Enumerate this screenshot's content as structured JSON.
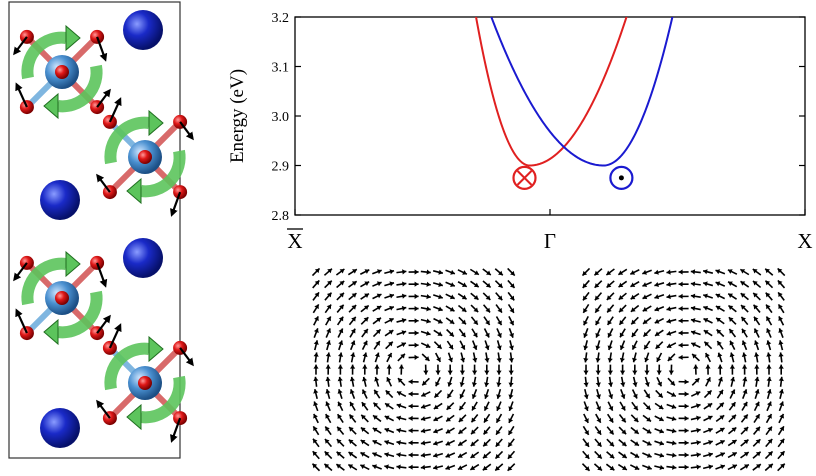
{
  "chart_data": {
    "type": "line",
    "ylabel": "Energy (eV)",
    "ylim": [
      2.8,
      3.2
    ],
    "yticks": [
      "2.8",
      "2.9",
      "3.0",
      "3.1",
      "3.2"
    ],
    "xlim": [
      -1,
      1
    ],
    "xticks": [
      {
        "pos": -1,
        "label": "X",
        "overline": true
      },
      {
        "pos": 0,
        "label": "Γ",
        "overline": false
      },
      {
        "pos": 1,
        "label": "X",
        "overline": false
      }
    ],
    "series": [
      {
        "color": "#e02020",
        "min_k": -0.08,
        "min_e": 2.9,
        "k_at_3_2": [
          -0.29,
          0.3
        ]
      },
      {
        "color": "#1a1ad0",
        "min_k": 0.21,
        "min_e": 2.9,
        "k_at_3_2": [
          -0.23,
          0.48
        ]
      }
    ],
    "spin_markers": [
      {
        "symbol": "⊗",
        "color": "#e02020",
        "k": -0.1,
        "e": 2.875
      },
      {
        "symbol": "⊙",
        "color": "#1a1ad0",
        "k": 0.28,
        "e": 2.875
      }
    ]
  },
  "crystal": {
    "octahedra": [
      {
        "cx": 62,
        "cy": 72,
        "tilt": -1
      },
      {
        "cx": 145,
        "cy": 157,
        "tilt": 1
      },
      {
        "cx": 62,
        "cy": 298,
        "tilt": -1
      },
      {
        "cx": 145,
        "cy": 383,
        "tilt": 1
      }
    ],
    "a_site_atoms": [
      {
        "cx": 143,
        "cy": 30
      },
      {
        "cx": 60,
        "cy": 200
      },
      {
        "cx": 143,
        "cy": 258
      },
      {
        "cx": 60,
        "cy": 428
      }
    ],
    "colors": {
      "oxygen": "#e01818",
      "b_site": "#4a90d0",
      "a_site": "#1a2ac8",
      "rotation": "#5cc45c"
    }
  },
  "spin_textures": [
    {
      "chirality": "counterclockwise"
    },
    {
      "chirality": "clockwise"
    }
  ]
}
